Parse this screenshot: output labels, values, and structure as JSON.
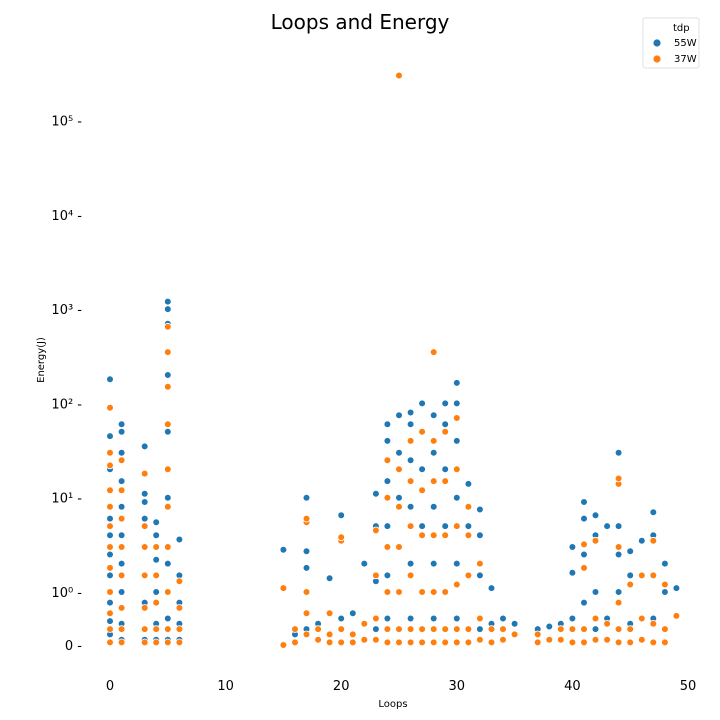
{
  "chart_data": {
    "type": "scatter",
    "title": "Loops and Energy",
    "xlabel": "Loops",
    "ylabel": "Energy(J)",
    "xlim": [
      -2,
      50.5
    ],
    "xticks": [
      0,
      10,
      20,
      30,
      40,
      50
    ],
    "xtick_labels": [
      "0",
      "10",
      "20",
      "30",
      "40",
      "50"
    ],
    "yscale": "symlog",
    "yticks": [
      0,
      1,
      10,
      100,
      1000,
      10000,
      100000
    ],
    "ytick_labels": [
      "0 -",
      "10⁰ -",
      "10¹ -",
      "10² -",
      "10³ -",
      "10⁴ -",
      "10⁵ -"
    ],
    "ylim": [
      -0.5,
      300000
    ],
    "grid": false,
    "legend": {
      "title": "tdp",
      "placement": "top-right"
    },
    "series": [
      {
        "name": "55W",
        "color": "#1f77b4",
        "points": [
          [
            0,
            0.05
          ],
          [
            0,
            0.2
          ],
          [
            0,
            0.45
          ],
          [
            0,
            0.8
          ],
          [
            0,
            1.5
          ],
          [
            0,
            2.5
          ],
          [
            0,
            4
          ],
          [
            0,
            6
          ],
          [
            0,
            8
          ],
          [
            0,
            12
          ],
          [
            0,
            20
          ],
          [
            0,
            30
          ],
          [
            0,
            45
          ],
          [
            0,
            180
          ],
          [
            1,
            0.1
          ],
          [
            1,
            0.4
          ],
          [
            1,
            1
          ],
          [
            1,
            2
          ],
          [
            1,
            4
          ],
          [
            1,
            8
          ],
          [
            1,
            15
          ],
          [
            1,
            30
          ],
          [
            1,
            50
          ],
          [
            1,
            60
          ],
          [
            3,
            0.1
          ],
          [
            3,
            0.3
          ],
          [
            3,
            0.8
          ],
          [
            3,
            1.5
          ],
          [
            3,
            3
          ],
          [
            3,
            6
          ],
          [
            3,
            9
          ],
          [
            3,
            11
          ],
          [
            3,
            35
          ],
          [
            4,
            0.1
          ],
          [
            4,
            0.4
          ],
          [
            4,
            1
          ],
          [
            4,
            2.2
          ],
          [
            4,
            4
          ],
          [
            4,
            5.5
          ],
          [
            5,
            0.1
          ],
          [
            5,
            0.5
          ],
          [
            5,
            2
          ],
          [
            5,
            10
          ],
          [
            5,
            50
          ],
          [
            5,
            200
          ],
          [
            5,
            700
          ],
          [
            5,
            1000
          ],
          [
            5,
            1200
          ],
          [
            6,
            0.1
          ],
          [
            6,
            0.4
          ],
          [
            6,
            0.8
          ],
          [
            6,
            1.5
          ],
          [
            6,
            3.6
          ],
          [
            15,
            2.8
          ],
          [
            16,
            0.2
          ],
          [
            17,
            0.3
          ],
          [
            17,
            1.8
          ],
          [
            17,
            2.7
          ],
          [
            17,
            10
          ],
          [
            18,
            0.4
          ],
          [
            19,
            1.4
          ],
          [
            20,
            0.5
          ],
          [
            20,
            6.5
          ],
          [
            21,
            0.6
          ],
          [
            22,
            2
          ],
          [
            23,
            0.3
          ],
          [
            23,
            1.3
          ],
          [
            23,
            5
          ],
          [
            23,
            11
          ],
          [
            24,
            0.5
          ],
          [
            24,
            1.5
          ],
          [
            24,
            5
          ],
          [
            24,
            15
          ],
          [
            24,
            40
          ],
          [
            24,
            60
          ],
          [
            25,
            0.3
          ],
          [
            25,
            1
          ],
          [
            25,
            3
          ],
          [
            25,
            10
          ],
          [
            25,
            30
          ],
          [
            25,
            75
          ],
          [
            26,
            0.5
          ],
          [
            26,
            2
          ],
          [
            26,
            8
          ],
          [
            26,
            25
          ],
          [
            26,
            60
          ],
          [
            26,
            80
          ],
          [
            27,
            0.3
          ],
          [
            27,
            1
          ],
          [
            27,
            5
          ],
          [
            27,
            20
          ],
          [
            27,
            50
          ],
          [
            27,
            100
          ],
          [
            28,
            0.5
          ],
          [
            28,
            2
          ],
          [
            28,
            8
          ],
          [
            28,
            30
          ],
          [
            28,
            75
          ],
          [
            29,
            0.3
          ],
          [
            29,
            1
          ],
          [
            29,
            5
          ],
          [
            29,
            20
          ],
          [
            29,
            60
          ],
          [
            29,
            100
          ],
          [
            30,
            0.5
          ],
          [
            30,
            2
          ],
          [
            30,
            10
          ],
          [
            30,
            40
          ],
          [
            30,
            100
          ],
          [
            30,
            165
          ],
          [
            31,
            0.3
          ],
          [
            31,
            1.5
          ],
          [
            31,
            5
          ],
          [
            31,
            14
          ],
          [
            32,
            0.3
          ],
          [
            32,
            1.5
          ],
          [
            32,
            4
          ],
          [
            32,
            7.5
          ],
          [
            33,
            0.4
          ],
          [
            33,
            1.1
          ],
          [
            34,
            0.5
          ],
          [
            35,
            0.4
          ],
          [
            37,
            0.3
          ],
          [
            38,
            0.35
          ],
          [
            39,
            0.4
          ],
          [
            40,
            0.5
          ],
          [
            40,
            1.6
          ],
          [
            40,
            3
          ],
          [
            41,
            0.3
          ],
          [
            41,
            0.8
          ],
          [
            41,
            2.5
          ],
          [
            41,
            6
          ],
          [
            41,
            9
          ],
          [
            42,
            0.3
          ],
          [
            42,
            1
          ],
          [
            42,
            4
          ],
          [
            42,
            6.5
          ],
          [
            43,
            0.5
          ],
          [
            43,
            5
          ],
          [
            44,
            0.3
          ],
          [
            44,
            1
          ],
          [
            44,
            2.5
          ],
          [
            44,
            5
          ],
          [
            44,
            30
          ],
          [
            45,
            0.4
          ],
          [
            45,
            1.5
          ],
          [
            45,
            2.7
          ],
          [
            46,
            0.5
          ],
          [
            46,
            1.5
          ],
          [
            46,
            3.5
          ],
          [
            47,
            0.5
          ],
          [
            47,
            1.5
          ],
          [
            47,
            4
          ],
          [
            47,
            7
          ],
          [
            48,
            0.3
          ],
          [
            48,
            1
          ],
          [
            48,
            2
          ],
          [
            49,
            1.1
          ]
        ]
      },
      {
        "name": "37W",
        "color": "#ff7f0e",
        "points": [
          [
            0,
            0.05
          ],
          [
            0,
            0.3
          ],
          [
            0,
            0.6
          ],
          [
            0,
            1
          ],
          [
            0,
            1.8
          ],
          [
            0,
            3
          ],
          [
            0,
            5
          ],
          [
            0,
            8
          ],
          [
            0,
            12
          ],
          [
            0,
            22
          ],
          [
            0,
            30
          ],
          [
            0,
            90
          ],
          [
            1,
            0.05
          ],
          [
            1,
            0.3
          ],
          [
            1,
            0.7
          ],
          [
            1,
            1.5
          ],
          [
            1,
            3
          ],
          [
            1,
            6
          ],
          [
            1,
            12
          ],
          [
            1,
            25
          ],
          [
            3,
            0.05
          ],
          [
            3,
            0.3
          ],
          [
            3,
            0.7
          ],
          [
            3,
            1.5
          ],
          [
            3,
            3
          ],
          [
            3,
            5
          ],
          [
            3,
            18
          ],
          [
            4,
            0.05
          ],
          [
            4,
            0.3
          ],
          [
            4,
            0.8
          ],
          [
            4,
            1.5
          ],
          [
            4,
            3
          ],
          [
            5,
            0.05
          ],
          [
            5,
            0.3
          ],
          [
            5,
            1
          ],
          [
            5,
            3
          ],
          [
            5,
            8
          ],
          [
            5,
            20
          ],
          [
            5,
            60
          ],
          [
            5,
            150
          ],
          [
            5,
            350
          ],
          [
            5,
            650
          ],
          [
            6,
            0.05
          ],
          [
            6,
            0.3
          ],
          [
            6,
            0.7
          ],
          [
            6,
            1.3
          ],
          [
            15,
            0
          ],
          [
            15,
            1.1
          ],
          [
            16,
            0.05
          ],
          [
            16,
            0.3
          ],
          [
            17,
            0.2
          ],
          [
            17,
            0.6
          ],
          [
            17,
            1
          ],
          [
            17,
            5.5
          ],
          [
            17,
            6
          ],
          [
            18,
            0.1
          ],
          [
            18,
            0.3
          ],
          [
            19,
            0.05
          ],
          [
            19,
            0.2
          ],
          [
            19,
            0.6
          ],
          [
            20,
            0.05
          ],
          [
            20,
            0.3
          ],
          [
            20,
            3.5
          ],
          [
            20,
            3.8
          ],
          [
            21,
            0.05
          ],
          [
            21,
            0.2
          ],
          [
            22,
            0.1
          ],
          [
            22,
            0.4
          ],
          [
            23,
            0.1
          ],
          [
            23,
            0.5
          ],
          [
            23,
            1.5
          ],
          [
            23,
            4.5
          ],
          [
            24,
            0.05
          ],
          [
            24,
            0.3
          ],
          [
            24,
            1
          ],
          [
            24,
            3
          ],
          [
            24,
            10
          ],
          [
            24,
            25
          ],
          [
            25,
            0.05
          ],
          [
            25,
            0.3
          ],
          [
            25,
            1
          ],
          [
            25,
            3
          ],
          [
            25,
            8
          ],
          [
            25,
            20
          ],
          [
            25,
            300000
          ],
          [
            26,
            0.05
          ],
          [
            26,
            0.3
          ],
          [
            26,
            1.5
          ],
          [
            26,
            5
          ],
          [
            26,
            15
          ],
          [
            26,
            40
          ],
          [
            27,
            0.05
          ],
          [
            27,
            0.3
          ],
          [
            27,
            1
          ],
          [
            27,
            4
          ],
          [
            27,
            12
          ],
          [
            27,
            50
          ],
          [
            28,
            0.05
          ],
          [
            28,
            0.3
          ],
          [
            28,
            1
          ],
          [
            28,
            4
          ],
          [
            28,
            15
          ],
          [
            28,
            40
          ],
          [
            28,
            350
          ],
          [
            29,
            0.05
          ],
          [
            29,
            0.3
          ],
          [
            29,
            1
          ],
          [
            29,
            4
          ],
          [
            29,
            15
          ],
          [
            29,
            50
          ],
          [
            30,
            0.05
          ],
          [
            30,
            0.3
          ],
          [
            30,
            1.2
          ],
          [
            30,
            5
          ],
          [
            30,
            20
          ],
          [
            30,
            70
          ],
          [
            31,
            0.05
          ],
          [
            31,
            0.3
          ],
          [
            31,
            1.5
          ],
          [
            31,
            4
          ],
          [
            31,
            8
          ],
          [
            32,
            0.1
          ],
          [
            32,
            0.5
          ],
          [
            32,
            2
          ],
          [
            33,
            0.05
          ],
          [
            33,
            0.3
          ],
          [
            34,
            0.1
          ],
          [
            34,
            0.3
          ],
          [
            35,
            0.2
          ],
          [
            37,
            0.05
          ],
          [
            37,
            0.2
          ],
          [
            38,
            0.1
          ],
          [
            39,
            0.1
          ],
          [
            39,
            0.3
          ],
          [
            40,
            0.05
          ],
          [
            40,
            0.3
          ],
          [
            41,
            0.05
          ],
          [
            41,
            0.3
          ],
          [
            41,
            1.8
          ],
          [
            41,
            3.2
          ],
          [
            42,
            0.1
          ],
          [
            42,
            0.5
          ],
          [
            42,
            3.5
          ],
          [
            43,
            0.1
          ],
          [
            43,
            0.4
          ],
          [
            44,
            0.05
          ],
          [
            44,
            0.3
          ],
          [
            44,
            0.8
          ],
          [
            44,
            3
          ],
          [
            44,
            14
          ],
          [
            44,
            16
          ],
          [
            45,
            0.05
          ],
          [
            45,
            0.3
          ],
          [
            45,
            1.2
          ],
          [
            46,
            0.1
          ],
          [
            46,
            0.5
          ],
          [
            46,
            1.5
          ],
          [
            47,
            0.05
          ],
          [
            47,
            0.4
          ],
          [
            47,
            1.5
          ],
          [
            47,
            3.5
          ],
          [
            48,
            0.05
          ],
          [
            48,
            0.3
          ],
          [
            48,
            1.2
          ],
          [
            49,
            0.55
          ]
        ]
      }
    ]
  }
}
